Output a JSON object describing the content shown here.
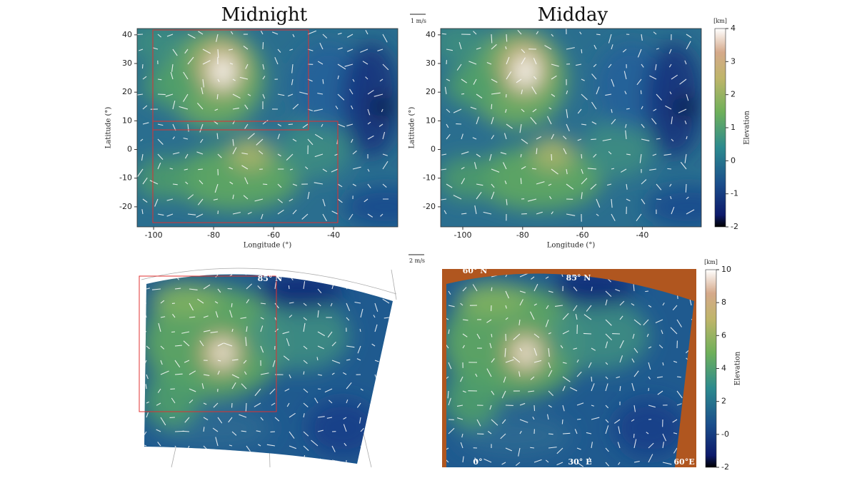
{
  "titles": [
    "Midnight",
    "Midday"
  ],
  "top_maps": [
    {
      "xlim": [
        -105.5,
        -18.6
      ],
      "ylim": [
        -27,
        42.2
      ],
      "xticks": [
        -100,
        -80,
        -60,
        -40
      ],
      "yticks": [
        40,
        30,
        20,
        10,
        0,
        -10,
        -20
      ],
      "xlabel": "Longitude (°)",
      "ylabel": "Latitude (°)"
    },
    {
      "xlim": [
        -107.4,
        -20.3
      ],
      "ylim": [
        -27,
        42.2
      ],
      "xticks": [
        -100,
        -80,
        -60,
        -40
      ],
      "yticks": [
        40,
        30,
        20,
        10,
        0,
        -10,
        -20
      ],
      "xlabel": "Longitude (°)",
      "ylabel": "Latitude (°)"
    }
  ],
  "scale_bars": [
    "1 m/s",
    "2 m/s"
  ],
  "colorbars": [
    {
      "unit": "[km]",
      "label": "Elevation",
      "lim": [
        -2,
        4
      ],
      "ticks": [
        4,
        3,
        2,
        1,
        0,
        -1,
        -2
      ]
    },
    {
      "unit": "[km]",
      "label": "Elevation",
      "lim": [
        -2,
        10
      ],
      "ticks": [
        10,
        8,
        6,
        4,
        2,
        {
          "value": 0,
          "label": "-0"
        },
        -2
      ]
    }
  ],
  "polar_labels": {
    "left": [
      "85° N"
    ],
    "right": [
      "60° N",
      "85° N",
      "0°",
      "30° E",
      "60°E"
    ]
  }
}
